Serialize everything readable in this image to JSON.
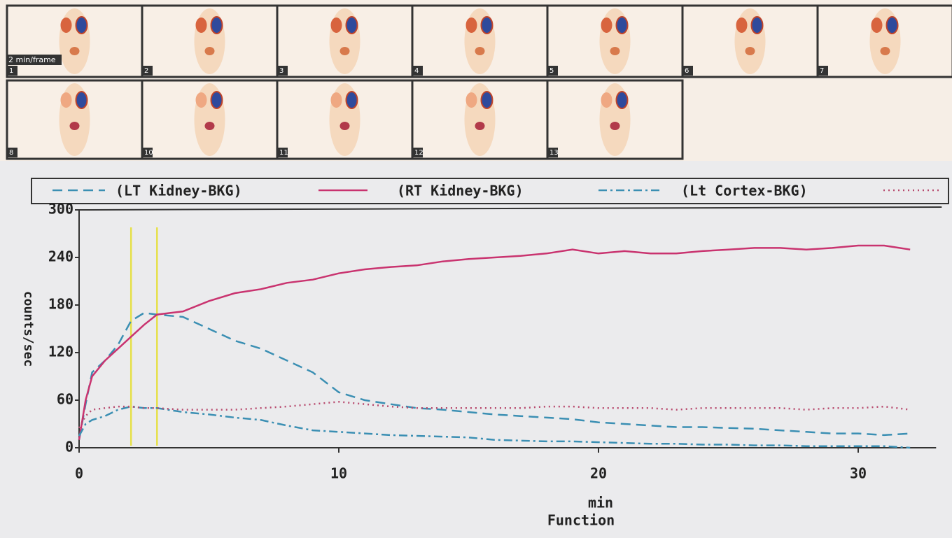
{
  "frames": {
    "note": "2 min/frame",
    "labels": [
      "1",
      "2",
      "3",
      "4",
      "5",
      "6",
      "7",
      "8",
      "10",
      "11",
      "12",
      "13"
    ]
  },
  "chart_data": {
    "type": "line",
    "x_label": "min",
    "x_sublabel": "Function",
    "y_label": "counts/sec",
    "x": [
      0,
      0.25,
      0.5,
      1,
      1.5,
      2,
      2.5,
      3,
      4,
      5,
      6,
      7,
      8,
      9,
      10,
      11,
      12,
      13,
      14,
      15,
      16,
      17,
      18,
      19,
      20,
      21,
      22,
      23,
      24,
      25,
      26,
      27,
      28,
      29,
      30,
      31,
      32
    ],
    "series": [
      {
        "name": "(LT Kidney-BKG)",
        "color": "#3b8fb3",
        "dash": "14 8",
        "values": [
          10,
          55,
          95,
          110,
          130,
          160,
          170,
          168,
          165,
          150,
          135,
          125,
          110,
          95,
          70,
          60,
          55,
          50,
          48,
          45,
          42,
          40,
          38,
          36,
          32,
          30,
          28,
          26,
          26,
          25,
          24,
          22,
          20,
          18,
          18,
          16,
          18
        ]
      },
      {
        "name": "(RT Kidney-BKG)",
        "color": "#c9336f",
        "dash": "none",
        "values": [
          10,
          60,
          90,
          110,
          125,
          140,
          155,
          168,
          172,
          185,
          195,
          200,
          208,
          212,
          220,
          225,
          228,
          230,
          235,
          238,
          240,
          242,
          245,
          250,
          245,
          248,
          245,
          245,
          248,
          250,
          252,
          252,
          250,
          252,
          255,
          255,
          250
        ]
      },
      {
        "name": "(Lt Cortex-BKG)",
        "color": "#3b8fb3",
        "dash": "12 5 3 5",
        "values": [
          15,
          30,
          35,
          40,
          48,
          52,
          50,
          50,
          45,
          42,
          38,
          35,
          28,
          22,
          20,
          18,
          16,
          15,
          14,
          13,
          10,
          9,
          8,
          8,
          7,
          6,
          5,
          5,
          4,
          4,
          3,
          3,
          2,
          2,
          2,
          2,
          0
        ]
      },
      {
        "color": "#b84a6e",
        "dash": "2 5",
        "values": [
          25,
          40,
          48,
          50,
          52,
          52,
          50,
          50,
          48,
          48,
          48,
          50,
          52,
          55,
          58,
          55,
          52,
          50,
          50,
          50,
          50,
          50,
          52,
          52,
          50,
          50,
          50,
          48,
          50,
          50,
          50,
          50,
          48,
          50,
          50,
          52,
          48
        ]
      }
    ],
    "markers": [
      2,
      3
    ],
    "marker_color": "#e6e04a",
    "xlim": [
      0,
      33
    ],
    "xticks": [
      0,
      10,
      20,
      30
    ],
    "ylim": [
      0,
      300
    ],
    "yticks": [
      0,
      60,
      120,
      180,
      240,
      300
    ]
  }
}
